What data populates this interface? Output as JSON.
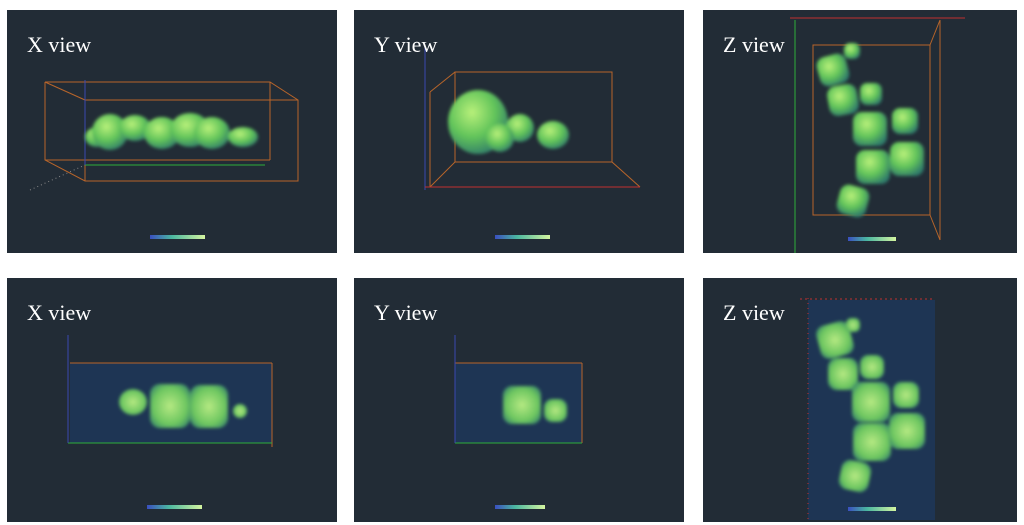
{
  "panels": [
    {
      "label": "X view"
    },
    {
      "label": "Y view"
    },
    {
      "label": "Z view"
    },
    {
      "label": "X view"
    },
    {
      "label": "Y view"
    },
    {
      "label": "Z view"
    }
  ]
}
